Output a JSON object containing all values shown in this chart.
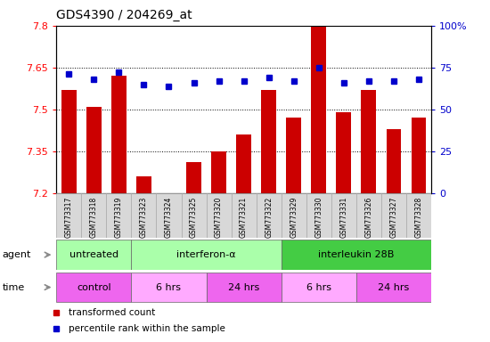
{
  "title": "GDS4390 / 204269_at",
  "samples": [
    "GSM773317",
    "GSM773318",
    "GSM773319",
    "GSM773323",
    "GSM773324",
    "GSM773325",
    "GSM773320",
    "GSM773321",
    "GSM773322",
    "GSM773329",
    "GSM773330",
    "GSM773331",
    "GSM773326",
    "GSM773327",
    "GSM773328"
  ],
  "red_values": [
    7.57,
    7.51,
    7.62,
    7.26,
    7.2,
    7.31,
    7.35,
    7.41,
    7.57,
    7.47,
    7.8,
    7.49,
    7.57,
    7.43,
    7.47
  ],
  "blue_values": [
    71,
    68,
    72,
    65,
    64,
    66,
    67,
    67,
    69,
    67,
    75,
    66,
    67,
    67,
    68
  ],
  "ylim_left": [
    7.2,
    7.8
  ],
  "ylim_right": [
    0,
    100
  ],
  "yticks_left": [
    7.2,
    7.35,
    7.5,
    7.65,
    7.8
  ],
  "yticks_right": [
    0,
    25,
    50,
    75,
    100
  ],
  "ytick_right_labels": [
    "0",
    "25",
    "50",
    "75",
    "100%"
  ],
  "hlines": [
    7.35,
    7.5,
    7.65
  ],
  "agent_groups": [
    {
      "label": "untreated",
      "start": 0,
      "end": 3,
      "color": "#aaffaa"
    },
    {
      "label": "interferon-α",
      "start": 3,
      "end": 9,
      "color": "#aaffaa"
    },
    {
      "label": "interleukin 28B",
      "start": 9,
      "end": 15,
      "color": "#44cc44"
    }
  ],
  "time_groups": [
    {
      "label": "control",
      "start": 0,
      "end": 3,
      "color": "#ee66ee"
    },
    {
      "label": "6 hrs",
      "start": 3,
      "end": 6,
      "color": "#ffaaff"
    },
    {
      "label": "24 hrs",
      "start": 6,
      "end": 9,
      "color": "#ee66ee"
    },
    {
      "label": "6 hrs",
      "start": 9,
      "end": 12,
      "color": "#ffaaff"
    },
    {
      "label": "24 hrs",
      "start": 12,
      "end": 15,
      "color": "#ee66ee"
    }
  ],
  "bar_color": "#cc0000",
  "dot_color": "#0000cc",
  "bar_width": 0.6,
  "plot_bg": "#ffffff",
  "tick_bg": "#d8d8d8",
  "fig_bg": "#ffffff",
  "legend_items": [
    {
      "label": "transformed count",
      "color": "#cc0000"
    },
    {
      "label": "percentile rank within the sample",
      "color": "#0000cc"
    }
  ]
}
